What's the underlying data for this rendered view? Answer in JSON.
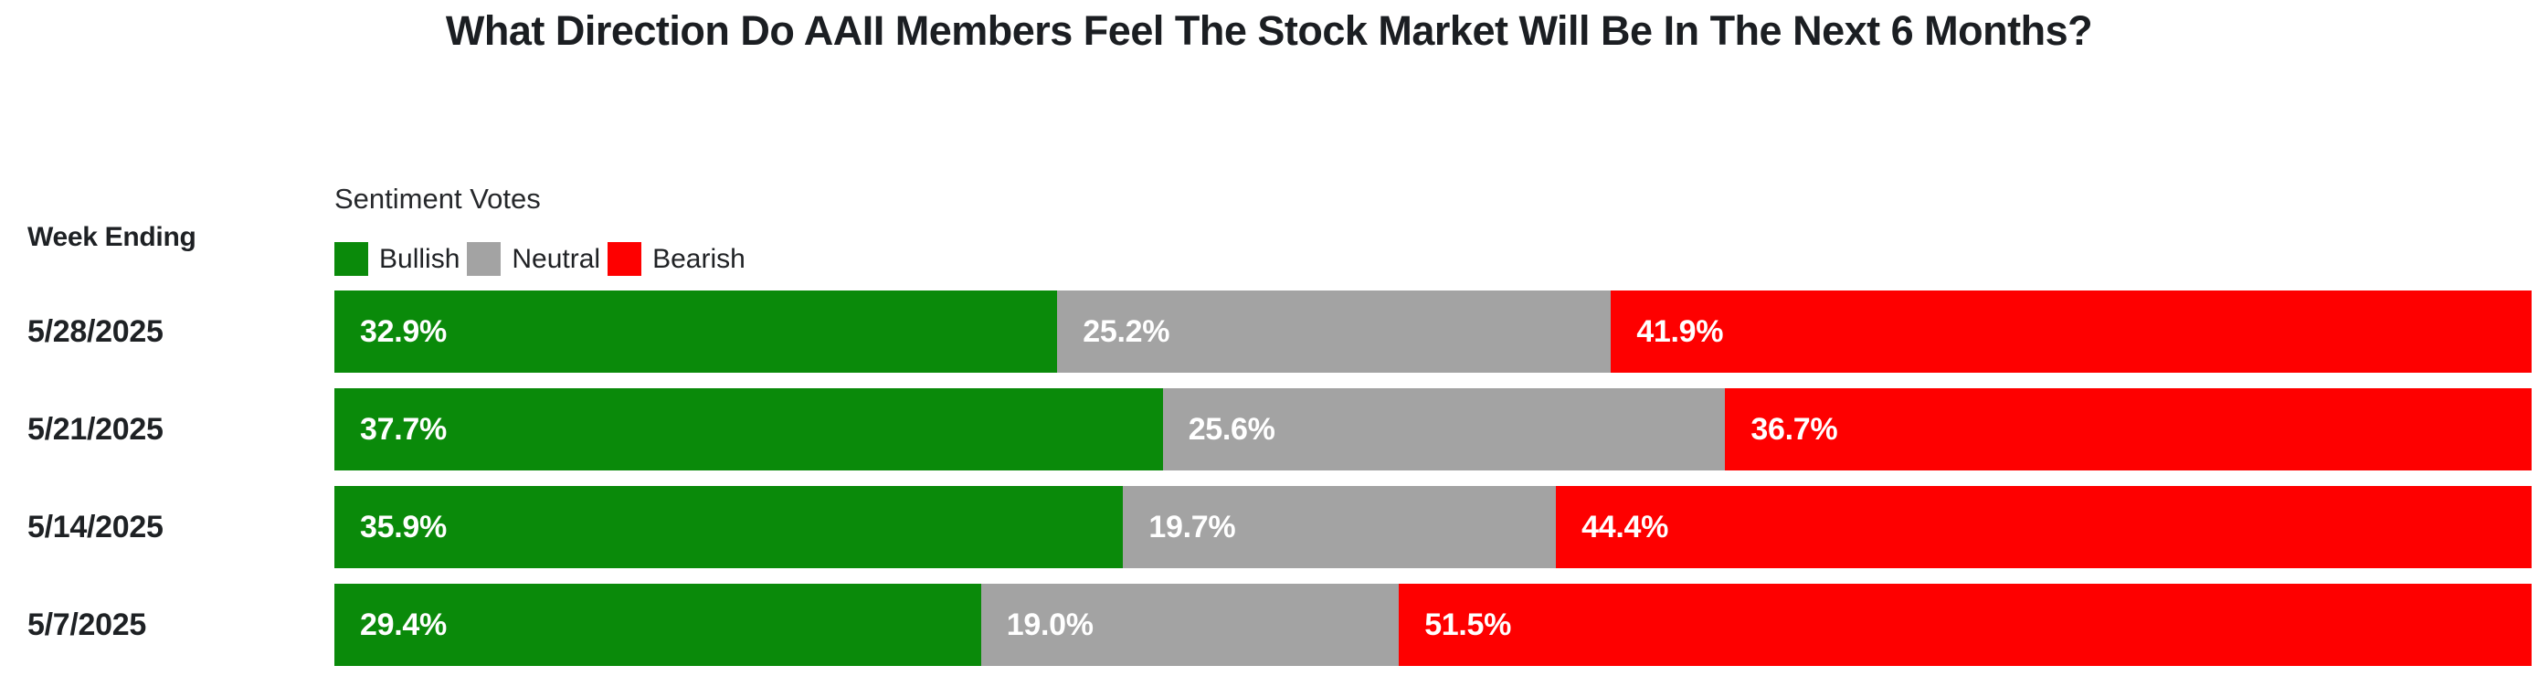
{
  "title": "What Direction Do AAII Members Feel The Stock Market Will Be In The Next 6 Months?",
  "chart": {
    "week_ending_label": "Week Ending",
    "legend_title": "Sentiment Votes",
    "legend": [
      {
        "label": "Bullish",
        "color": "#0a8a0a"
      },
      {
        "label": "Neutral",
        "color": "#a3a3a3"
      },
      {
        "label": "Bearish",
        "color": "#fe0000"
      }
    ]
  },
  "colors": {
    "bullish": "#0a8a0a",
    "neutral": "#a3a3a3",
    "bearish": "#fe0000",
    "title_text": "#1b1e22",
    "bar_value_text": "#ffffff",
    "background": "#ffffff"
  },
  "chart_data": {
    "type": "bar",
    "orientation": "horizontal-stacked",
    "title": "What Direction Do AAII Members Feel The Stock Market Will Be In The Next 6 Months?",
    "ylabel": "Week Ending",
    "xlabel": "",
    "xlim": [
      0,
      100
    ],
    "value_format": "percent-one-decimal",
    "grid": false,
    "legend_position": "top-left",
    "categories": [
      "5/28/2025",
      "5/21/2025",
      "5/14/2025",
      "5/7/2025"
    ],
    "series": [
      {
        "name": "Bullish",
        "color": "#0a8a0a",
        "values": [
          32.9,
          37.7,
          35.9,
          29.4
        ]
      },
      {
        "name": "Neutral",
        "color": "#a3a3a3",
        "values": [
          25.2,
          25.6,
          19.7,
          19.0
        ]
      },
      {
        "name": "Bearish",
        "color": "#fe0000",
        "values": [
          41.9,
          36.7,
          44.4,
          51.5
        ]
      }
    ]
  }
}
